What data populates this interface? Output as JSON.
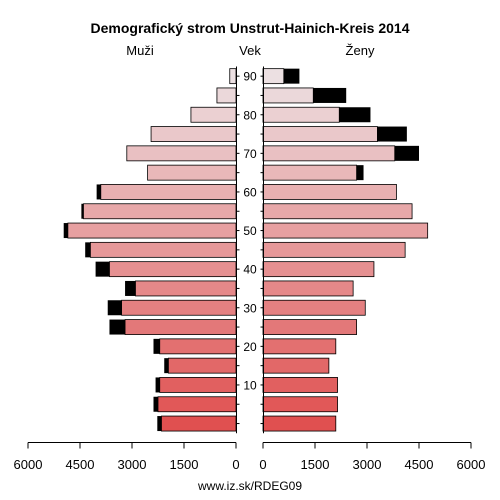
{
  "chart_data": {
    "type": "bar",
    "title": "Demografický strom Unstrut-Hainich-Kreis 2014",
    "left_label": "Muži",
    "center_label": "Vek",
    "right_label": "Ženy",
    "footer": "www.iz.sk/RDEG09",
    "x_range": [
      0,
      6000
    ],
    "x_ticks": [
      0,
      1500,
      3000,
      4500,
      6000
    ],
    "x_tick_labels": {
      "left": [
        "6000",
        "4500",
        "3000",
        "1500",
        "0"
      ],
      "right": [
        "0",
        "1500",
        "3000",
        "4500",
        "6000"
      ]
    },
    "age_labels": [
      "10",
      "20",
      "30",
      "40",
      "50",
      "60",
      "70",
      "80",
      "90"
    ],
    "age_groups": [
      "0-4",
      "5-9",
      "10-14",
      "15-19",
      "20-24",
      "25-29",
      "30-34",
      "35-39",
      "40-44",
      "45-49",
      "50-54",
      "55-59",
      "60-64",
      "65-69",
      "70-74",
      "75-79",
      "80-84",
      "85-89",
      "90+"
    ],
    "series": [
      {
        "name": "Muži",
        "side": "left",
        "values": [
          2150,
          2250,
          2200,
          1950,
          2200,
          3200,
          3300,
          2900,
          3650,
          4200,
          4850,
          4400,
          3900,
          2550,
          3150,
          2450,
          1300,
          550,
          180
        ],
        "excess": [
          120,
          130,
          120,
          120,
          180,
          450,
          400,
          300,
          400,
          150,
          120,
          60,
          120,
          0,
          0,
          0,
          0,
          0,
          0
        ]
      },
      {
        "name": "Ženy",
        "side": "right",
        "values": [
          2100,
          2150,
          2150,
          1900,
          2100,
          2700,
          2950,
          2600,
          3200,
          4100,
          4750,
          4300,
          3850,
          2700,
          3800,
          3300,
          2200,
          1450,
          600
        ],
        "excess": [
          0,
          0,
          0,
          0,
          0,
          0,
          0,
          0,
          0,
          0,
          0,
          0,
          0,
          200,
          700,
          850,
          900,
          950,
          450
        ]
      }
    ]
  }
}
